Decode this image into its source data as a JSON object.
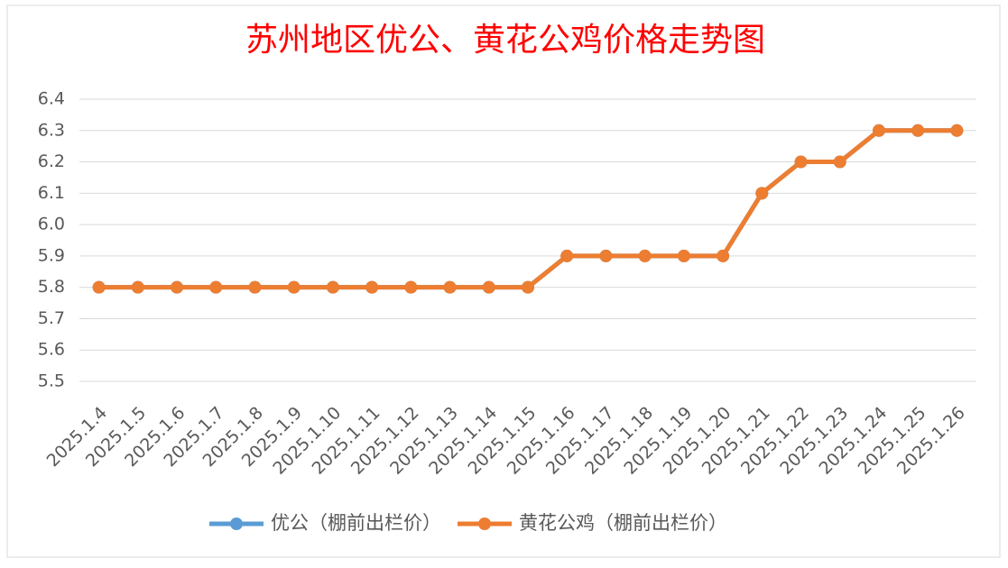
{
  "chart_data": {
    "type": "line",
    "title": "苏州地区优公、黄花公鸡价格走势图",
    "categories": [
      "2025.1.4",
      "2025.1.5",
      "2025.1.6",
      "2025.1.7",
      "2025.1.8",
      "2025.1.9",
      "2025.1.10",
      "2025.1.11",
      "2025.1.12",
      "2025.1.13",
      "2025.1.14",
      "2025.1.15",
      "2025.1.16",
      "2025.1.17",
      "2025.1.18",
      "2025.1.19",
      "2025.1.20",
      "2025.1.21",
      "2025.1.22",
      "2025.1.23",
      "2025.1.24",
      "2025.1.25",
      "2025.1.26"
    ],
    "series": [
      {
        "name": "优公（棚前出栏价）",
        "color": "#5b9bd5",
        "values": [
          5.8,
          5.8,
          5.8,
          5.8,
          5.8,
          5.8,
          5.8,
          5.8,
          5.8,
          5.8,
          5.8,
          5.8,
          5.9,
          5.9,
          5.9,
          5.9,
          5.9,
          6.1,
          6.2,
          6.2,
          6.3,
          6.3,
          6.3
        ]
      },
      {
        "name": "黄花公鸡（棚前出栏价）",
        "color": "#ed7d31",
        "values": [
          5.8,
          5.8,
          5.8,
          5.8,
          5.8,
          5.8,
          5.8,
          5.8,
          5.8,
          5.8,
          5.8,
          5.8,
          5.9,
          5.9,
          5.9,
          5.9,
          5.9,
          6.1,
          6.2,
          6.2,
          6.3,
          6.3,
          6.3
        ]
      }
    ],
    "ylim": [
      5.5,
      6.4
    ],
    "yticks": [
      5.5,
      5.6,
      5.7,
      5.8,
      5.9,
      {
        "value": 6,
        "label": "6.0"
      },
      6.1,
      6.2,
      6.3,
      6.4
    ],
    "grid": true,
    "legend": "bottom"
  }
}
